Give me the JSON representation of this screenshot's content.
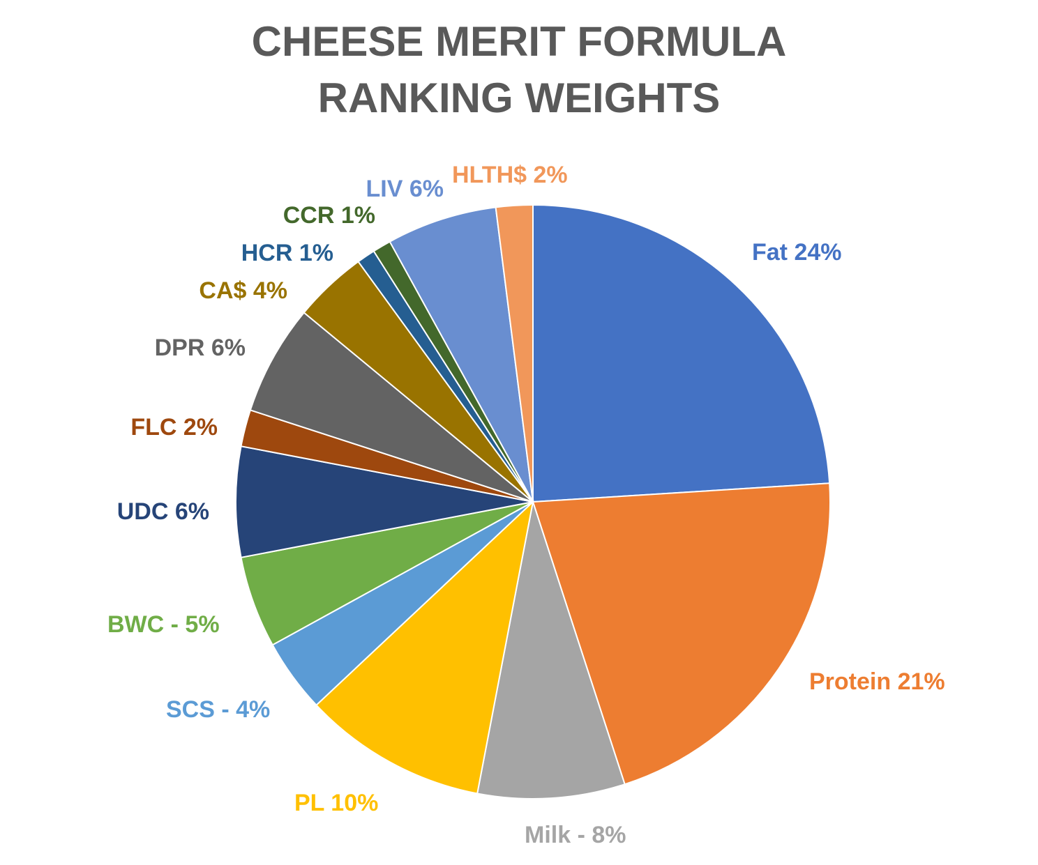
{
  "chart_data": {
    "type": "pie",
    "title_lines": [
      "CHEESE MERIT FORMULA",
      "RANKING WEIGHTS"
    ],
    "slices": [
      {
        "label": "Fat 24%",
        "value": 24,
        "color": "#4472C4",
        "label_color": "#4472C4"
      },
      {
        "label": "Protein 21%",
        "value": 21,
        "color": "#ED7D31",
        "label_color": "#ED7D31"
      },
      {
        "label": "Milk  - 8%",
        "value": 8,
        "color": "#A5A5A5",
        "label_color": "#A5A5A5"
      },
      {
        "label": "PL 10%",
        "value": 10,
        "color": "#FFC000",
        "label_color": "#FFC000"
      },
      {
        "label": "SCS  - 4%",
        "value": 4,
        "color": "#5B9BD5",
        "label_color": "#5B9BD5"
      },
      {
        "label": "BWC  - 5%",
        "value": 5,
        "color": "#70AD47",
        "label_color": "#70AD47"
      },
      {
        "label": "UDC 6%",
        "value": 6,
        "color": "#264478",
        "label_color": "#264478"
      },
      {
        "label": "FLC 2%",
        "value": 2,
        "color": "#9E480E",
        "label_color": "#9E480E"
      },
      {
        "label": "DPR 6%",
        "value": 6,
        "color": "#636363",
        "label_color": "#636363"
      },
      {
        "label": "CA$ 4%",
        "value": 4,
        "color": "#997300",
        "label_color": "#997300"
      },
      {
        "label": "HCR 1%",
        "value": 1,
        "color": "#255E91",
        "label_color": "#255E91"
      },
      {
        "label": "CCR 1%",
        "value": 1,
        "color": "#43682B",
        "label_color": "#43682B"
      },
      {
        "label": "LIV 6%",
        "value": 6,
        "color": "#698ED0",
        "label_color": "#698ED0"
      },
      {
        "label": "HLTH$ 2%",
        "value": 2,
        "color": "#F1975A",
        "label_color": "#F1975A"
      }
    ]
  }
}
